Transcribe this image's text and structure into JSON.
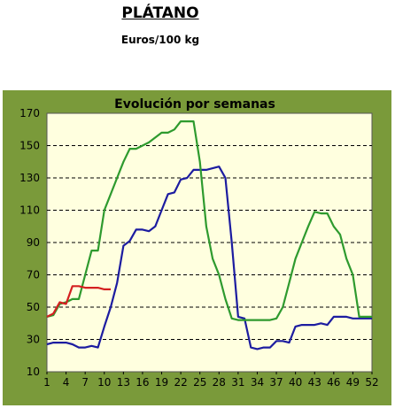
{
  "header": {
    "title": "PLÁTANO",
    "subtitle": "Euros/100 kg"
  },
  "chart_data": {
    "type": "line",
    "title": "Evolución por semanas",
    "xlabel": "",
    "ylabel": "",
    "xlim": [
      1,
      52
    ],
    "ylim": [
      10,
      170
    ],
    "yticks": [
      10,
      30,
      50,
      70,
      90,
      110,
      130,
      150,
      170
    ],
    "xticks": [
      1,
      4,
      7,
      10,
      13,
      16,
      19,
      22,
      25,
      28,
      31,
      34,
      37,
      40,
      43,
      46,
      49,
      52
    ],
    "grid": true,
    "colors": {
      "frame": "#7a9a3a",
      "plot_bg": "#ffffdf",
      "blue": "#1c1ca0",
      "green": "#2e9a2e",
      "red": "#d42020"
    },
    "series": [
      {
        "color": "blue",
        "x": [
          1,
          2,
          3,
          4,
          5,
          6,
          7,
          8,
          9,
          10,
          11,
          12,
          13,
          14,
          15,
          16,
          17,
          18,
          19,
          20,
          21,
          22,
          23,
          24,
          25,
          26,
          27,
          28,
          29,
          30,
          31,
          32,
          33,
          34,
          35,
          36,
          37,
          38,
          39,
          40,
          41,
          42,
          43,
          44,
          45,
          46,
          47,
          48,
          49,
          50,
          51,
          52
        ],
        "values": [
          27,
          28,
          28,
          28,
          27,
          25,
          25,
          26,
          25,
          38,
          50,
          65,
          88,
          91,
          98,
          98,
          97,
          100,
          110,
          120,
          121,
          129,
          130,
          135,
          135,
          135,
          136,
          137,
          130,
          90,
          44,
          43,
          25,
          24,
          25,
          25,
          29,
          29,
          28,
          38,
          39,
          39,
          39,
          40,
          39,
          44,
          44,
          44,
          43,
          43,
          43,
          43
        ]
      },
      {
        "color": "green",
        "x": [
          1,
          2,
          3,
          4,
          5,
          6,
          7,
          8,
          9,
          10,
          11,
          12,
          13,
          14,
          15,
          16,
          17,
          18,
          19,
          20,
          21,
          22,
          23,
          24,
          25,
          26,
          27,
          28,
          29,
          30,
          31,
          32,
          33,
          34,
          35,
          36,
          37,
          38,
          39,
          40,
          41,
          42,
          43,
          44,
          45,
          46,
          47,
          48,
          49,
          50,
          51,
          52
        ],
        "values": [
          44,
          45,
          52,
          53,
          55,
          55,
          70,
          85,
          85,
          110,
          120,
          130,
          140,
          148,
          148,
          150,
          152,
          155,
          158,
          158,
          160,
          165,
          165,
          165,
          140,
          100,
          80,
          70,
          55,
          43,
          42,
          42,
          42,
          42,
          42,
          42,
          43,
          50,
          65,
          80,
          90,
          100,
          109,
          108,
          108,
          100,
          95,
          80,
          70,
          44,
          44,
          44
        ]
      },
      {
        "color": "red",
        "x": [
          1,
          2,
          3,
          4,
          5,
          6,
          7,
          8,
          9,
          10,
          11
        ],
        "values": [
          44,
          46,
          53,
          52,
          63,
          63,
          62,
          62,
          62,
          61,
          61
        ]
      }
    ]
  }
}
